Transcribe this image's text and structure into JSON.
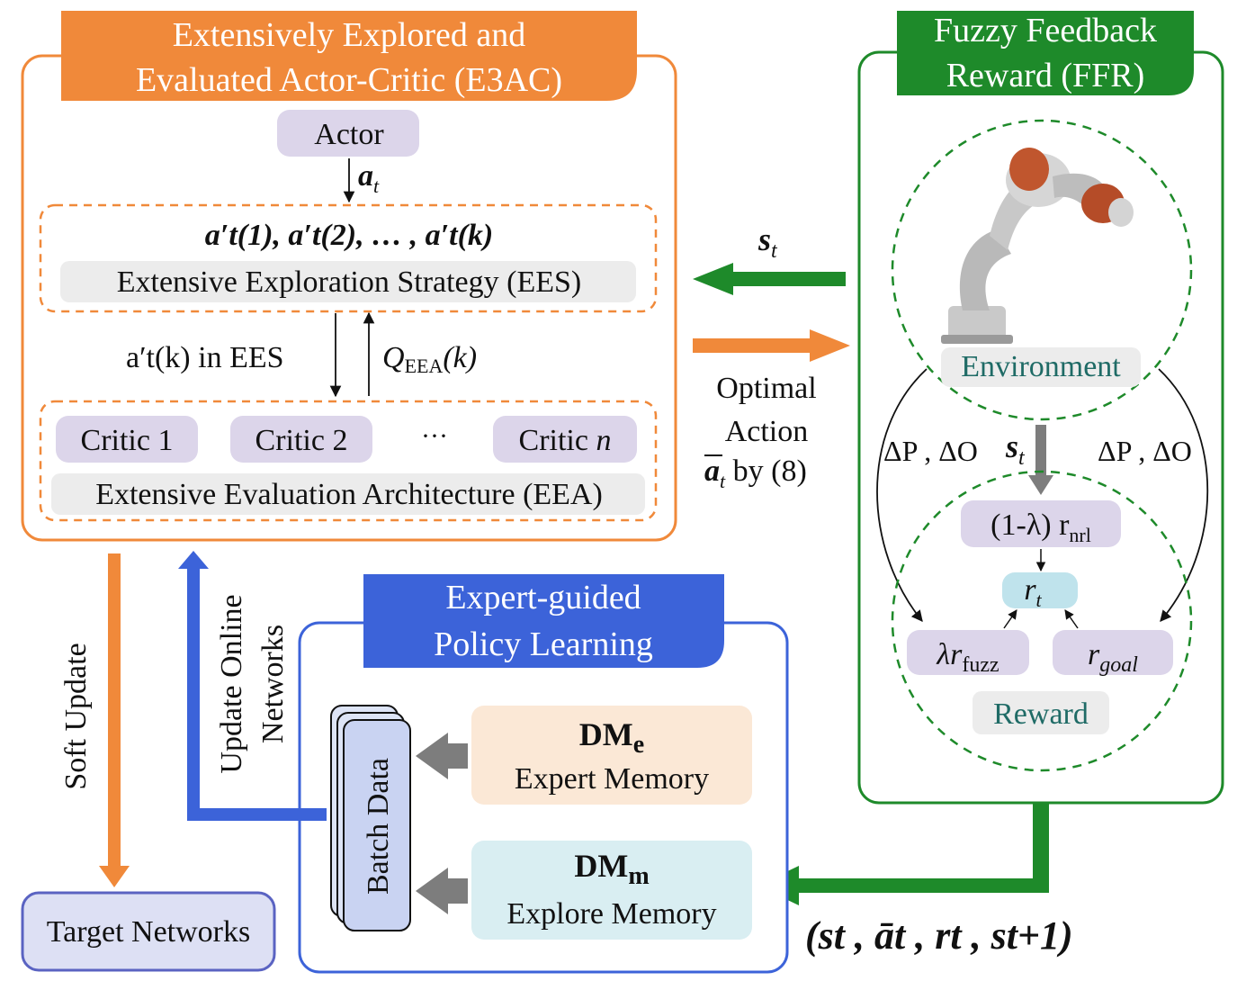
{
  "e3ac": {
    "title_line1": "Extensively Explored and",
    "title_line2": "Evaluated Actor-Critic (E3AC)",
    "actor": "Actor",
    "action_symbol": "a",
    "action_sub": "t",
    "ees_actions": "a′t(1),  a′t(2),  … , a′t(k)",
    "ees_label": "Extensive Exploration Strategy (EES)",
    "ees_to_eea": "a′t(k)  in EES",
    "q_symbol": "Q",
    "q_sub": "EEA",
    "q_arg": "(k)",
    "critic1": "Critic 1",
    "critic2": "Critic 2",
    "critic_ellipsis": "···",
    "criticn_prefix": "Critic ",
    "criticn_var": "n",
    "eea_label": "Extensive Evaluation Architecture (EEA)"
  },
  "ffr": {
    "title_line1": "Fuzzy Feedback",
    "title_line2": "Reward (FFR)",
    "environment": "Environment",
    "delta_left": "ΔP , ΔO",
    "delta_right": "ΔP , ΔO",
    "state_symbol": "s",
    "state_sub": "t",
    "rnrl_prefix": "(1-λ) r",
    "rnrl_sub": "nrl",
    "rt_symbol": "r",
    "rt_sub": "t",
    "rfuzz_prefix": "λr",
    "rfuzz_sub": "fuzz",
    "rgoal_symbol": "r",
    "rgoal_sub": "goal",
    "reward": "Reward"
  },
  "middle": {
    "state_symbol": "s",
    "state_sub": "t",
    "optimal_line1": "Optimal",
    "optimal_line2": "Action",
    "optimal_symbol": "a",
    "optimal_sub": "t",
    "optimal_suffix": " by (8)"
  },
  "epl": {
    "title_line1": "Expert-guided",
    "title_line2": "Policy Learning",
    "batch_data": "Batch Data",
    "dme_main": "DM",
    "dme_sub": "e",
    "dme_label": "Expert Memory",
    "dmm_main": "DM",
    "dmm_sub": "m",
    "dmm_label": "Explore Memory",
    "transition": "(st , āt , rt , st+1)"
  },
  "left": {
    "soft_update": "Soft Update",
    "update_online_line1": "Update Online",
    "update_online_line2": "Networks",
    "target_networks": "Target Networks"
  },
  "colors": {
    "orange": "#f0893a",
    "green": "#1e8a2a",
    "blue": "#3c63d9",
    "lavender": "#dcd5ea",
    "lightgray": "#ececec",
    "peach": "#fbe8d6",
    "lightblue": "#d9eef2",
    "teal": "#1f6b66",
    "gray_arrow": "#7d7d7d"
  }
}
